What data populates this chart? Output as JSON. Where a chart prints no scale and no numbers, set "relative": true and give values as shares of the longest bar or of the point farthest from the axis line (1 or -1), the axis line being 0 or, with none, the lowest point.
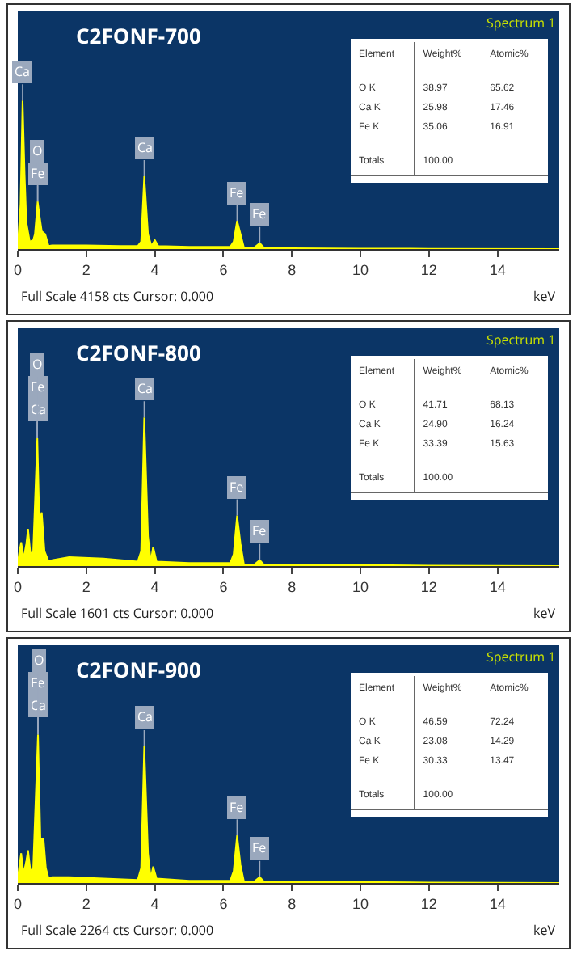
{
  "chart_data": [
    {
      "type": "area",
      "title": "C2FONF-700",
      "subtitle": "Spectrum 1",
      "xlabel": "keV",
      "relative": true,
      "color": "#ffff00",
      "xlim": [
        0,
        15.8
      ],
      "xticks": [
        0,
        2,
        4,
        6,
        8,
        10,
        12,
        14
      ],
      "x": [
        0,
        0.08,
        0.14,
        0.2,
        0.25,
        0.35,
        0.45,
        0.5,
        0.58,
        0.65,
        0.7,
        0.8,
        0.9,
        1.0,
        2.0,
        3.0,
        3.5,
        3.6,
        3.69,
        3.8,
        3.9,
        4.0,
        4.1,
        5.0,
        6.2,
        6.3,
        6.4,
        6.5,
        6.6,
        6.9,
        7.06,
        7.2,
        8.0,
        10.0,
        12.0,
        15.8
      ],
      "values": [
        0.02,
        0.3,
        1,
        0.5,
        0.18,
        0.05,
        0.06,
        0.1,
        0.32,
        0.2,
        0.12,
        0.1,
        0.02,
        0.025,
        0.025,
        0.02,
        0.02,
        0.05,
        0.49,
        0.1,
        0.02,
        0.06,
        0.02,
        0.015,
        0.015,
        0.05,
        0.19,
        0.1,
        0.01,
        0.01,
        0.04,
        0.005,
        0.005,
        0.003,
        0.002,
        0
      ],
      "annotations": [
        {
          "text": "Ca",
          "x": 0.14,
          "y": 1
        },
        {
          "text": "Fe",
          "x": 0.58,
          "y": 0.32
        },
        {
          "text": "O",
          "x": 0.58,
          "y": 0.32
        },
        {
          "text": "Ca",
          "x": 3.69,
          "y": 0.49
        },
        {
          "text": "Fe",
          "x": 6.4,
          "y": 0.19
        },
        {
          "text": "Fe",
          "x": 7.06,
          "y": 0.04
        },
        "Full Scale 4158 cts Cursor: 0.000",
        "Element",
        "Weight%",
        "Atomic%",
        "O K",
        "38.97",
        "65.62",
        "Ca K",
        "25.98",
        "17.46",
        "Fe K",
        "35.06",
        "16.91",
        "Totals",
        "100.00"
      ]
    },
    {
      "type": "area",
      "title": "C2FONF-800",
      "subtitle": "Spectrum 1",
      "xlabel": "keV",
      "relative": true,
      "color": "#ffff00",
      "xlim": [
        0,
        15.8
      ],
      "xticks": [
        0,
        2,
        4,
        6,
        8,
        10,
        12,
        14
      ],
      "x": [
        0,
        0.05,
        0.1,
        0.17,
        0.25,
        0.3,
        0.37,
        0.45,
        0.57,
        0.63,
        0.7,
        0.78,
        0.9,
        1.0,
        1.5,
        2.5,
        3.5,
        3.6,
        3.69,
        3.8,
        3.88,
        3.95,
        4.05,
        5.0,
        6.2,
        6.3,
        6.4,
        6.5,
        6.6,
        6.9,
        7.06,
        7.2,
        8.0,
        9.0,
        12.0,
        15.8
      ],
      "values": [
        0.02,
        0.1,
        0.16,
        0.05,
        0.15,
        0.25,
        0.08,
        0.1,
        0.86,
        0.3,
        0.36,
        0.1,
        0.03,
        0.04,
        0.06,
        0.05,
        0.03,
        0.1,
        1,
        0.2,
        0.03,
        0.13,
        0.03,
        0.02,
        0.02,
        0.08,
        0.34,
        0.15,
        0.01,
        0.01,
        0.04,
        0.005,
        0.01,
        0.01,
        0.003,
        0
      ],
      "annotations": [
        {
          "text": "Ca",
          "x": 0.57,
          "y": 0.86
        },
        {
          "text": "Fe",
          "x": 0.57,
          "y": 0.86
        },
        {
          "text": "O",
          "x": 0.57,
          "y": 0.86
        },
        {
          "text": "Ca",
          "x": 3.69,
          "y": 1
        },
        {
          "text": "Fe",
          "x": 6.4,
          "y": 0.34
        },
        {
          "text": "Fe",
          "x": 7.06,
          "y": 0.04
        },
        "Full Scale 1601 cts Cursor: 0.000",
        "Element",
        "Weight%",
        "Atomic%",
        "O K",
        "41.71",
        "68.13",
        "Ca K",
        "24.90",
        "16.24",
        "Fe K",
        "33.39",
        "15.63",
        "Totals",
        "100.00"
      ]
    },
    {
      "type": "area",
      "title": "C2FONF-900",
      "subtitle": "Spectrum 1",
      "xlabel": "keV",
      "relative": true,
      "color": "#ffff00",
      "xlim": [
        0,
        15.8
      ],
      "xticks": [
        0,
        2,
        4,
        6,
        8,
        10,
        12,
        14
      ],
      "x": [
        0,
        0.05,
        0.1,
        0.17,
        0.25,
        0.3,
        0.37,
        0.45,
        0.59,
        0.66,
        0.75,
        0.82,
        0.9,
        1.0,
        1.5,
        2.5,
        3.5,
        3.6,
        3.69,
        3.8,
        3.88,
        3.95,
        4.05,
        5.0,
        6.2,
        6.3,
        6.4,
        6.5,
        6.6,
        6.9,
        7.06,
        7.2,
        8.0,
        9.0,
        12.0,
        15.8
      ],
      "values": [
        0.03,
        0.12,
        0.2,
        0.06,
        0.15,
        0.22,
        0.08,
        0.1,
        1,
        0.3,
        0.3,
        0.1,
        0.03,
        0.04,
        0.04,
        0.03,
        0.02,
        0.1,
        0.92,
        0.2,
        0.03,
        0.11,
        0.03,
        0.015,
        0.015,
        0.08,
        0.32,
        0.12,
        0.01,
        0.01,
        0.04,
        0.005,
        0.008,
        0.008,
        0.003,
        0
      ],
      "annotations": [
        {
          "text": "Ca",
          "x": 0.59,
          "y": 1
        },
        {
          "text": "Fe",
          "x": 0.59,
          "y": 1
        },
        {
          "text": "O",
          "x": 0.59,
          "y": 1
        },
        {
          "text": "Ca",
          "x": 3.69,
          "y": 0.92
        },
        {
          "text": "Fe",
          "x": 6.4,
          "y": 0.32
        },
        {
          "text": "Fe",
          "x": 7.06,
          "y": 0.04
        },
        "Full Scale 2264 cts Cursor: 0.000",
        "Element",
        "Weight%",
        "Atomic%",
        "O K",
        "46.59",
        "72.24",
        "Ca K",
        "23.08",
        "14.29",
        "Fe K",
        "30.33",
        "13.47",
        "Totals",
        "100.00"
      ]
    }
  ]
}
